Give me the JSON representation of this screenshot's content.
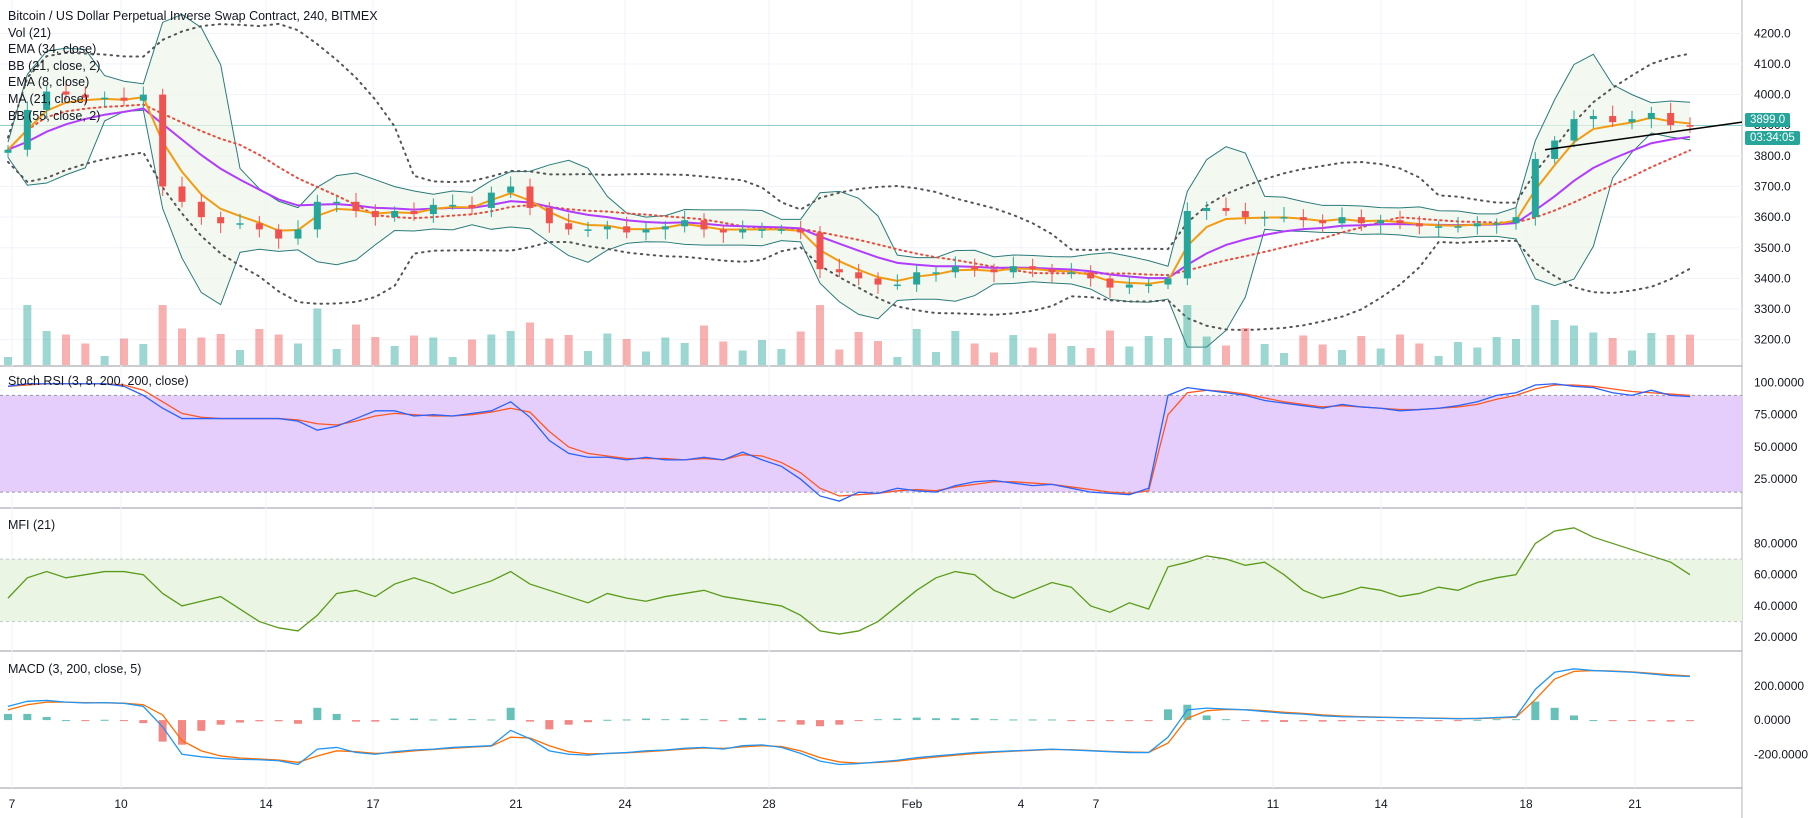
{
  "legend": {
    "title": "Bitcoin / US Dollar Perpetual Inverse Swap Contract, 240, BITMEX",
    "lines": [
      "Vol (21)",
      "EMA (34, close)",
      "BB (21, close, 2)",
      "EMA (8, close)",
      "MA (21, close)",
      "BB (55, close, 2)"
    ]
  },
  "panes": {
    "stoch_title": "Stoch RSI (3, 8, 200, 200, close)",
    "mfi_title": "MFI (21)",
    "macd_title": "MACD (3, 200, close, 5)"
  },
  "badges": {
    "price": "3899.0",
    "countdown": "03:34:05"
  },
  "colors": {
    "up": "#26a69a",
    "down": "#ef5350",
    "ema34": "#b23cfd",
    "ema8": "#f39c12",
    "ma21": "#888888",
    "bb": "#2a7a7a",
    "bb55": "#555555",
    "stoch_k": "#2962ff",
    "stoch_d": "#ff5722",
    "stoch_band": "#e1c6fb",
    "mfi": "#5b9b1a",
    "mfi_band": "#eaf5e3"
  },
  "chart_data": [
    {
      "type": "candlestick",
      "title": "Bitcoin / US Dollar Perpetual Inverse Swap Contract, 240, BITMEX",
      "x_ticks": [
        "7",
        "10",
        "14",
        "17",
        "21",
        "24",
        "28",
        "Feb",
        "4",
        "7",
        "11",
        "14",
        "18",
        "21"
      ],
      "y_ticks": [
        4200.0,
        4100.0,
        4000.0,
        3900.0,
        3800.0,
        3700.0,
        3600.0,
        3500.0,
        3400.0,
        3300.0,
        3200.0
      ],
      "ylim": [
        3150,
        4250
      ],
      "close": [
        3820,
        3950,
        4010,
        4000,
        3990,
        3990,
        3980,
        4000,
        3700,
        3650,
        3600,
        3580,
        3580,
        3560,
        3530,
        3560,
        3650,
        3650,
        3620,
        3600,
        3620,
        3610,
        3640,
        3640,
        3630,
        3680,
        3700,
        3630,
        3580,
        3560,
        3560,
        3570,
        3550,
        3560,
        3570,
        3590,
        3560,
        3550,
        3560,
        3560,
        3560,
        3550,
        3430,
        3420,
        3400,
        3380,
        3380,
        3420,
        3420,
        3440,
        3430,
        3420,
        3440,
        3430,
        3420,
        3420,
        3400,
        3370,
        3380,
        3380,
        3400,
        3620,
        3630,
        3620,
        3600,
        3600,
        3600,
        3590,
        3580,
        3600,
        3580,
        3590,
        3580,
        3570,
        3570,
        3570,
        3580,
        3580,
        3600,
        3790,
        3850,
        3920,
        3930,
        3910,
        3920,
        3940,
        3900,
        3899
      ],
      "volume_ticks": "volume histogram shown beneath price",
      "indicators": [
        "EMA (34, close)",
        "BB (21, close, 2)",
        "EMA (8, close)",
        "MA (21, close)",
        "BB (55, close, 2)"
      ],
      "last_price": 3899.0
    },
    {
      "type": "line",
      "title": "Stoch RSI (3, 8, 200, 200, close)",
      "y_ticks": [
        100.0,
        75.0,
        50.0,
        25.0
      ],
      "ylim": [
        5,
        105
      ],
      "band": [
        15,
        90
      ],
      "series": [
        {
          "name": "K",
          "values": [
            97,
            99,
            99,
            99,
            99,
            99,
            97,
            90,
            80,
            72,
            72,
            72,
            72,
            72,
            72,
            70,
            63,
            66,
            72,
            78,
            78,
            74,
            75,
            74,
            76,
            78,
            85,
            73,
            55,
            45,
            42,
            42,
            40,
            42,
            40,
            40,
            42,
            40,
            46,
            40,
            35,
            25,
            12,
            8,
            15,
            14,
            18,
            16,
            15,
            20,
            23,
            24,
            22,
            20,
            21,
            18,
            15,
            14,
            13,
            18,
            90,
            96,
            94,
            92,
            90,
            86,
            84,
            82,
            80,
            83,
            81,
            80,
            78,
            79,
            80,
            82,
            85,
            90,
            92,
            98,
            99,
            97,
            96,
            92,
            90,
            94,
            90,
            89
          ]
        },
        {
          "name": "D",
          "values": [
            97,
            98,
            99,
            99,
            99,
            99,
            98,
            94,
            85,
            76,
            73,
            72,
            72,
            72,
            72,
            71,
            68,
            67,
            70,
            74,
            76,
            75,
            74,
            74,
            75,
            77,
            80,
            77,
            62,
            50,
            45,
            43,
            41,
            41,
            41,
            40,
            41,
            40,
            44,
            43,
            38,
            30,
            18,
            12,
            13,
            14,
            16,
            17,
            16,
            19,
            21,
            23,
            23,
            22,
            21,
            19,
            17,
            15,
            14,
            16,
            75,
            92,
            94,
            93,
            91,
            88,
            85,
            83,
            81,
            82,
            81,
            80,
            79,
            79,
            80,
            81,
            83,
            87,
            90,
            95,
            98,
            98,
            97,
            95,
            93,
            92,
            91,
            90
          ]
        }
      ]
    },
    {
      "type": "line",
      "title": "MFI (21)",
      "y_ticks": [
        80.0,
        60.0,
        40.0,
        20.0
      ],
      "ylim": [
        15,
        95
      ],
      "band": [
        30,
        70
      ],
      "series": [
        {
          "name": "MFI",
          "values": [
            45,
            58,
            62,
            58,
            60,
            62,
            62,
            60,
            48,
            40,
            43,
            46,
            38,
            30,
            26,
            24,
            34,
            48,
            50,
            46,
            54,
            58,
            54,
            48,
            52,
            56,
            62,
            54,
            50,
            46,
            42,
            48,
            45,
            43,
            46,
            48,
            50,
            46,
            44,
            42,
            40,
            34,
            24,
            22,
            24,
            30,
            40,
            50,
            58,
            62,
            60,
            50,
            45,
            50,
            55,
            52,
            40,
            36,
            42,
            38,
            65,
            68,
            72,
            70,
            66,
            68,
            60,
            50,
            45,
            48,
            52,
            50,
            46,
            48,
            52,
            50,
            55,
            58,
            60,
            80,
            88,
            90,
            84,
            80,
            76,
            72,
            68,
            60
          ]
        }
      ]
    },
    {
      "type": "line",
      "title": "MACD (3, 200, close, 5)",
      "y_ticks": [
        200.0,
        0.0,
        -200.0
      ],
      "ylim": [
        -380,
        340
      ],
      "series": [
        {
          "name": "MACD",
          "values": [
            80,
            110,
            115,
            105,
            100,
            102,
            98,
            80,
            -40,
            -200,
            -215,
            -225,
            -230,
            -232,
            -238,
            -260,
            -170,
            -160,
            -190,
            -200,
            -185,
            -175,
            -170,
            -160,
            -155,
            -150,
            -60,
            -110,
            -180,
            -200,
            -205,
            -195,
            -190,
            -180,
            -175,
            -165,
            -160,
            -170,
            -150,
            -145,
            -160,
            -195,
            -240,
            -260,
            -255,
            -245,
            -235,
            -220,
            -210,
            -200,
            -190,
            -185,
            -180,
            -175,
            -170,
            -175,
            -180,
            -185,
            -190,
            -190,
            -100,
            60,
            70,
            65,
            60,
            50,
            40,
            35,
            25,
            20,
            18,
            16,
            14,
            12,
            10,
            8,
            10,
            15,
            20,
            180,
            280,
            300,
            290,
            285,
            280,
            270,
            260,
            255
          ]
        },
        {
          "name": "Signal",
          "values": [
            60,
            90,
            105,
            105,
            102,
            101,
            99,
            90,
            30,
            -120,
            -180,
            -210,
            -222,
            -228,
            -234,
            -248,
            -210,
            -180,
            -185,
            -195,
            -190,
            -180,
            -172,
            -165,
            -158,
            -152,
            -100,
            -105,
            -150,
            -185,
            -198,
            -196,
            -192,
            -185,
            -178,
            -170,
            -163,
            -166,
            -157,
            -150,
            -155,
            -180,
            -220,
            -245,
            -252,
            -248,
            -240,
            -228,
            -216,
            -206,
            -196,
            -188,
            -182,
            -177,
            -172,
            -173,
            -178,
            -183,
            -187,
            -189,
            -135,
            10,
            55,
            62,
            61,
            55,
            46,
            39,
            30,
            24,
            20,
            17,
            15,
            13,
            11,
            9,
            9,
            12,
            17,
            120,
            240,
            285,
            290,
            287,
            282,
            274,
            265,
            258
          ]
        }
      ]
    }
  ]
}
